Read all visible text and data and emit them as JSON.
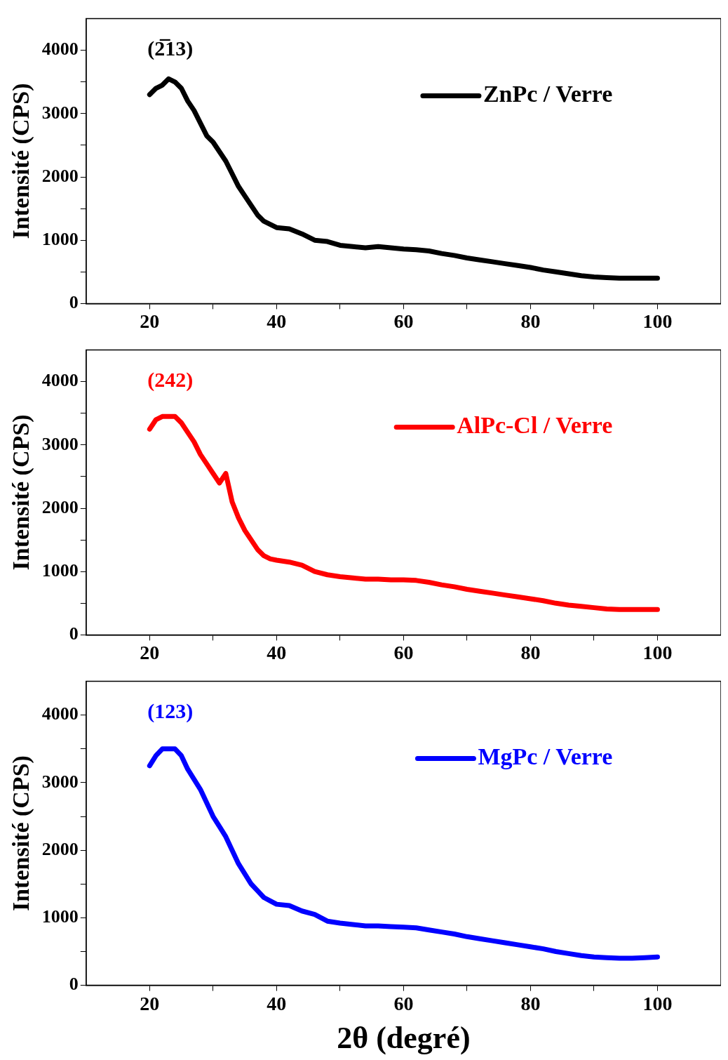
{
  "chart_data": [
    {
      "type": "line",
      "ylabel": "Intensité (CPS)",
      "xlim": [
        10,
        110
      ],
      "ylim": [
        0,
        4500
      ],
      "xticks": [
        20,
        {
          "value": 30,
          "label": null
        },
        40,
        {
          "value": 50,
          "label": null
        },
        60,
        {
          "value": 70,
          "label": null
        },
        80,
        {
          "value": 90,
          "label": null
        },
        100
      ],
      "yticks": [
        0,
        {
          "value": 500,
          "label": null
        },
        1000,
        {
          "value": 1500,
          "label": null
        },
        2000,
        {
          "value": 2500,
          "label": null
        },
        3000,
        {
          "value": 3500,
          "label": null
        },
        4000
      ],
      "grid": false,
      "legend": "top right",
      "annotations": [
        "(2̅13)"
      ],
      "x": [
        20,
        21,
        22,
        23,
        24,
        25,
        26,
        27,
        28,
        29,
        30,
        31,
        32,
        33,
        34,
        35,
        36,
        37,
        38,
        39,
        40,
        42,
        44,
        46,
        48,
        50,
        52,
        54,
        56,
        58,
        60,
        62,
        64,
        66,
        68,
        70,
        72,
        74,
        76,
        78,
        80,
        82,
        84,
        86,
        88,
        90,
        92,
        94,
        96,
        98,
        100
      ],
      "series": [
        {
          "name": "ZnPc / Verre",
          "color": "#000000",
          "values": [
            3300,
            3400,
            3450,
            3550,
            3500,
            3400,
            3200,
            3050,
            2850,
            2650,
            2550,
            2400,
            2250,
            2050,
            1850,
            1700,
            1550,
            1400,
            1300,
            1250,
            1200,
            1180,
            1100,
            1000,
            980,
            920,
            900,
            880,
            900,
            880,
            860,
            850,
            830,
            790,
            760,
            720,
            690,
            660,
            630,
            600,
            570,
            530,
            500,
            470,
            440,
            420,
            410,
            400,
            400,
            400,
            400
          ]
        }
      ]
    },
    {
      "type": "line",
      "ylabel": "Intensité (CPS)",
      "xlim": [
        10,
        110
      ],
      "ylim": [
        0,
        4500
      ],
      "xticks": [
        20,
        {
          "value": 30,
          "label": null
        },
        40,
        {
          "value": 50,
          "label": null
        },
        60,
        {
          "value": 70,
          "label": null
        },
        80,
        {
          "value": 90,
          "label": null
        },
        100
      ],
      "yticks": [
        0,
        {
          "value": 500,
          "label": null
        },
        1000,
        {
          "value": 1500,
          "label": null
        },
        2000,
        {
          "value": 2500,
          "label": null
        },
        3000,
        {
          "value": 3500,
          "label": null
        },
        4000
      ],
      "grid": false,
      "legend": "top right",
      "annotations": [
        "(242)"
      ],
      "x": [
        20,
        21,
        22,
        23,
        24,
        25,
        26,
        27,
        28,
        29,
        30,
        31,
        32,
        33,
        34,
        35,
        36,
        37,
        38,
        39,
        40,
        42,
        44,
        46,
        48,
        50,
        52,
        54,
        56,
        58,
        60,
        62,
        64,
        66,
        68,
        70,
        72,
        74,
        76,
        78,
        80,
        82,
        84,
        86,
        88,
        90,
        92,
        94,
        96,
        98,
        100
      ],
      "series": [
        {
          "name": "AlPc-Cl / Verre",
          "color": "#ff0000",
          "values": [
            3250,
            3400,
            3450,
            3450,
            3450,
            3350,
            3200,
            3050,
            2850,
            2700,
            2550,
            2400,
            2550,
            2100,
            1850,
            1650,
            1500,
            1350,
            1250,
            1200,
            1180,
            1150,
            1100,
            1000,
            950,
            920,
            900,
            880,
            880,
            870,
            870,
            860,
            830,
            790,
            760,
            720,
            690,
            660,
            630,
            600,
            570,
            540,
            500,
            470,
            450,
            430,
            410,
            400,
            400,
            400,
            400
          ]
        }
      ]
    },
    {
      "type": "line",
      "xlabel": "2θ (degré)",
      "ylabel": "Intensité (CPS)",
      "xlim": [
        10,
        110
      ],
      "ylim": [
        0,
        4500
      ],
      "xticks": [
        20,
        {
          "value": 30,
          "label": null
        },
        40,
        {
          "value": 50,
          "label": null
        },
        60,
        {
          "value": 70,
          "label": null
        },
        80,
        {
          "value": 90,
          "label": null
        },
        100
      ],
      "yticks": [
        0,
        {
          "value": 500,
          "label": null
        },
        1000,
        {
          "value": 1500,
          "label": null
        },
        2000,
        {
          "value": 2500,
          "label": null
        },
        3000,
        {
          "value": 3500,
          "label": null
        },
        4000
      ],
      "grid": false,
      "legend": "top right",
      "annotations": [
        "(123)"
      ],
      "x": [
        20,
        21,
        22,
        23,
        24,
        25,
        26,
        27,
        28,
        29,
        30,
        31,
        32,
        33,
        34,
        35,
        36,
        37,
        38,
        39,
        40,
        42,
        44,
        46,
        48,
        50,
        52,
        54,
        56,
        58,
        60,
        62,
        64,
        66,
        68,
        70,
        72,
        74,
        76,
        78,
        80,
        82,
        84,
        86,
        88,
        90,
        92,
        94,
        96,
        98,
        100
      ],
      "series": [
        {
          "name": "MgPc / Verre",
          "color": "#0000ff",
          "values": [
            3250,
            3400,
            3500,
            3500,
            3500,
            3400,
            3200,
            3050,
            2900,
            2700,
            2500,
            2350,
            2200,
            2000,
            1800,
            1650,
            1500,
            1400,
            1300,
            1250,
            1200,
            1180,
            1100,
            1050,
            950,
            920,
            900,
            880,
            880,
            870,
            860,
            850,
            820,
            790,
            760,
            720,
            690,
            660,
            630,
            600,
            570,
            540,
            500,
            470,
            440,
            420,
            410,
            400,
            400,
            410,
            420
          ]
        }
      ]
    }
  ]
}
